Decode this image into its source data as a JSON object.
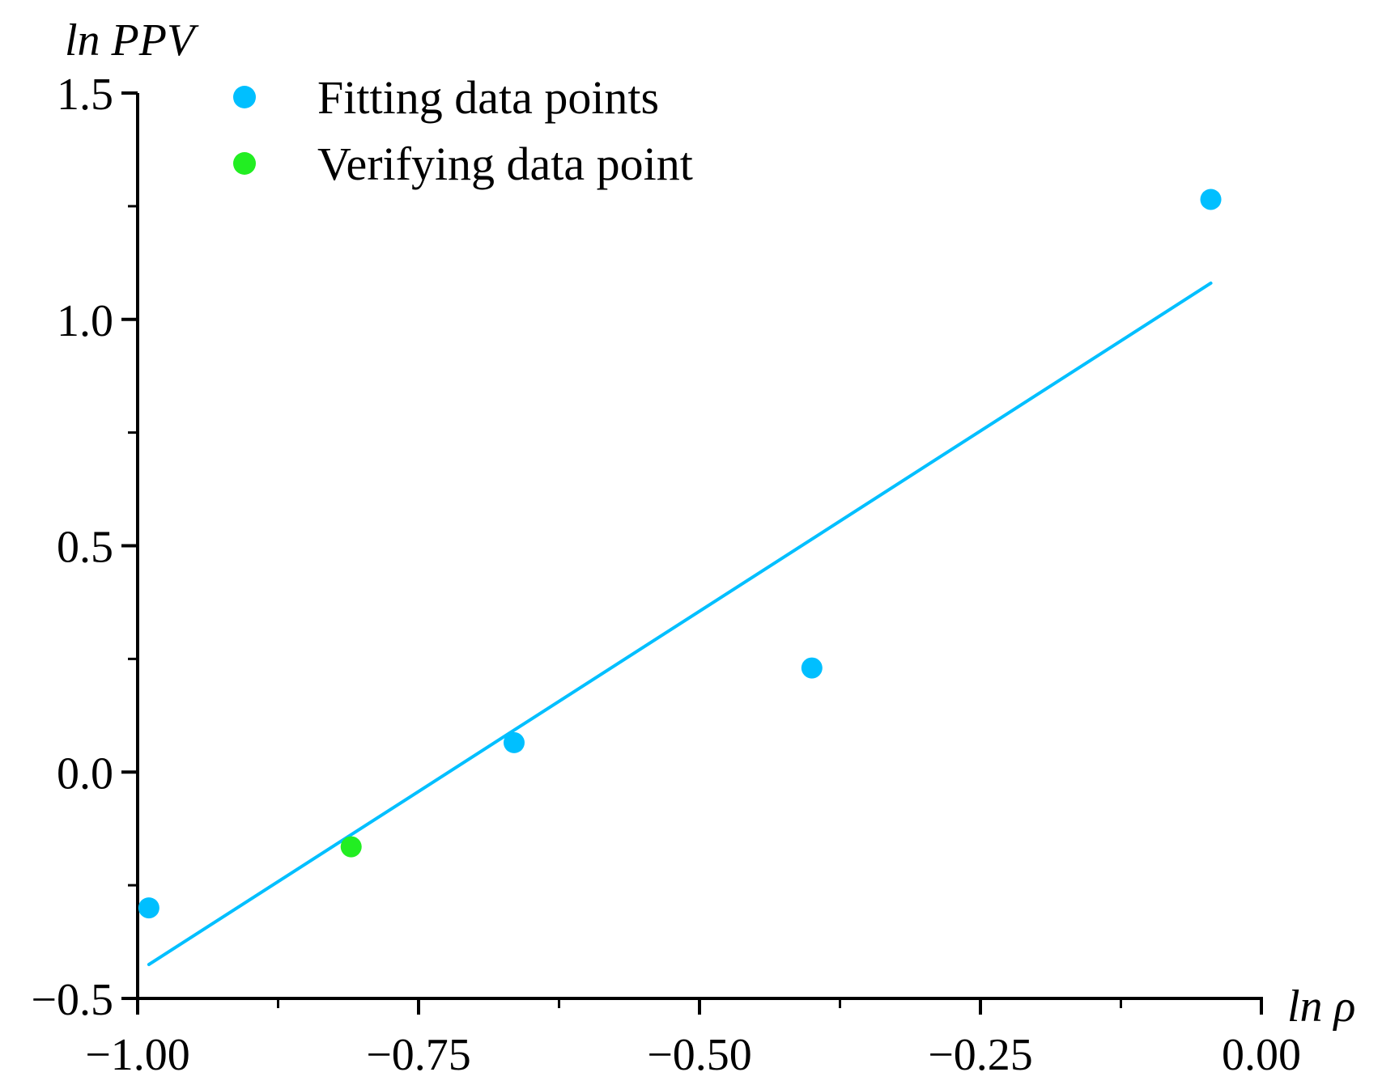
{
  "chart_data": {
    "type": "scatter",
    "title": "",
    "xlabel": "ln ρ",
    "ylabel": "ln PPV",
    "xlim": [
      -1.0,
      0.0
    ],
    "ylim": [
      -0.5,
      1.5
    ],
    "x_ticks": [
      -1.0,
      -0.75,
      -0.5,
      -0.25,
      0.0
    ],
    "x_tick_labels": [
      "−1.00",
      "−0.75",
      "−0.50",
      "−0.25",
      "0.00"
    ],
    "y_ticks": [
      -0.5,
      0.0,
      0.5,
      1.0,
      1.5
    ],
    "y_tick_labels": [
      "−0.5",
      "0.0",
      "0.5",
      "1.0",
      "1.5"
    ],
    "grid": false,
    "legend_position": "top-left",
    "series": [
      {
        "name": "Fitting data points",
        "color": "#00BFFF",
        "points": [
          {
            "x": -0.99,
            "y": -0.3
          },
          {
            "x": -0.665,
            "y": 0.065
          },
          {
            "x": -0.4,
            "y": 0.23
          },
          {
            "x": -0.045,
            "y": 1.265
          }
        ]
      },
      {
        "name": "Verifying data point",
        "color": "#22EE22",
        "points": [
          {
            "x": -0.81,
            "y": -0.165
          }
        ]
      }
    ],
    "fit_line": {
      "color": "#00BFFF",
      "x": [
        -0.99,
        -0.045
      ],
      "y": [
        -0.425,
        1.08
      ]
    }
  }
}
